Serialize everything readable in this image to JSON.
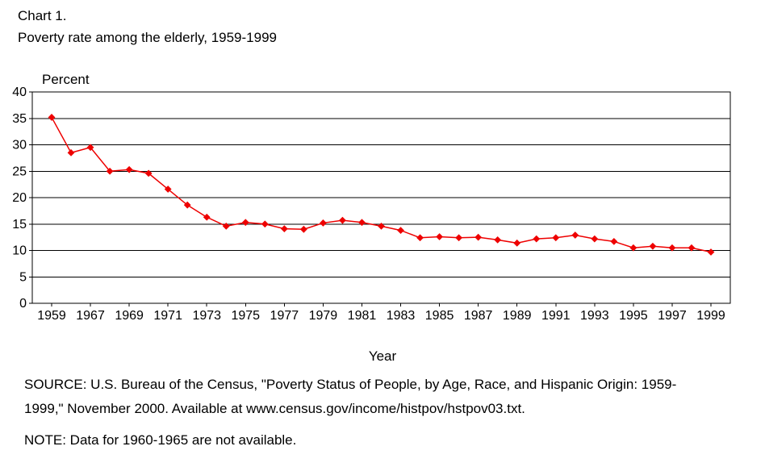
{
  "header": {
    "line1": "Chart 1.",
    "line2": "Poverty rate among the elderly, 1959-1999"
  },
  "chart_data": {
    "type": "line",
    "title": "Poverty rate among the elderly, 1959-1999",
    "ylabel": "Percent",
    "xlabel": "Year",
    "ylim": [
      0,
      40
    ],
    "y_ticks": [
      0,
      5,
      10,
      15,
      20,
      25,
      30,
      35,
      40
    ],
    "grid": true,
    "legend": "none",
    "marker": "diamond",
    "x_tick_labels": [
      "1959",
      "1967",
      "1969",
      "1971",
      "1973",
      "1975",
      "1977",
      "1979",
      "1981",
      "1983",
      "1985",
      "1987",
      "1989",
      "1991",
      "1993",
      "1995",
      "1997",
      "1999"
    ],
    "series": [
      {
        "name": "Poverty rate among the elderly",
        "color": "#ee0000",
        "x": [
          1959,
          1966,
          1967,
          1968,
          1969,
          1970,
          1971,
          1972,
          1973,
          1974,
          1975,
          1976,
          1977,
          1978,
          1979,
          1980,
          1981,
          1982,
          1983,
          1984,
          1985,
          1986,
          1987,
          1988,
          1989,
          1990,
          1991,
          1992,
          1993,
          1994,
          1995,
          1996,
          1997,
          1998,
          1999
        ],
        "values": [
          35.2,
          28.5,
          29.5,
          25.0,
          25.3,
          24.6,
          21.6,
          18.6,
          16.3,
          14.6,
          15.3,
          15.0,
          14.1,
          14.0,
          15.2,
          15.7,
          15.3,
          14.6,
          13.8,
          12.4,
          12.6,
          12.4,
          12.5,
          12.0,
          11.4,
          12.2,
          12.4,
          12.9,
          12.2,
          11.7,
          10.5,
          10.8,
          10.5,
          10.5,
          9.7
        ]
      }
    ]
  },
  "footer": {
    "source": "SOURCE: U.S. Bureau of the Census, \"Poverty Status of People, by Age, Race, and Hispanic Origin: 1959-1999,\" November 2000. Available at www.census.gov/income/histpov/hstpov03.txt.",
    "note": "NOTE: Data for 1960-1965 are not available."
  }
}
